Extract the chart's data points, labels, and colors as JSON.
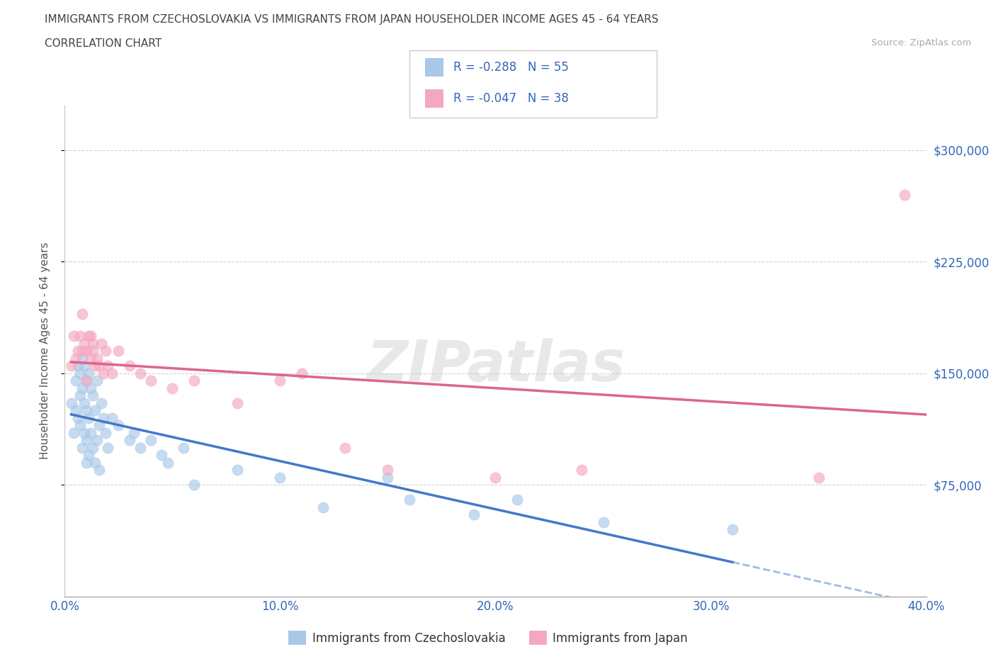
{
  "title_line1": "IMMIGRANTS FROM CZECHOSLOVAKIA VS IMMIGRANTS FROM JAPAN HOUSEHOLDER INCOME AGES 45 - 64 YEARS",
  "title_line2": "CORRELATION CHART",
  "source_text": "Source: ZipAtlas.com",
  "ylabel": "Householder Income Ages 45 - 64 years",
  "xlim": [
    0.0,
    0.4
  ],
  "ylim": [
    0,
    330000
  ],
  "xtick_labels": [
    "0.0%",
    "10.0%",
    "20.0%",
    "30.0%",
    "40.0%"
  ],
  "xtick_vals": [
    0.0,
    0.1,
    0.2,
    0.3,
    0.4
  ],
  "ytick_labels": [
    "$75,000",
    "$150,000",
    "$225,000",
    "$300,000"
  ],
  "ytick_vals": [
    75000,
    150000,
    225000,
    300000
  ],
  "legend_label1": "Immigrants from Czechoslovakia",
  "legend_label2": "Immigrants from Japan",
  "r1": "-0.288",
  "n1": "55",
  "r2": "-0.047",
  "n2": "38",
  "color1": "#a8c8e8",
  "color2": "#f4a8c0",
  "line1_color": "#4477cc",
  "line2_color": "#dd6688",
  "watermark_text": "ZIPatlas",
  "background_color": "#ffffff",
  "grid_color": "#cccccc",
  "czecho_x": [
    0.003,
    0.004,
    0.005,
    0.005,
    0.006,
    0.006,
    0.007,
    0.007,
    0.007,
    0.008,
    0.008,
    0.008,
    0.009,
    0.009,
    0.009,
    0.01,
    0.01,
    0.01,
    0.01,
    0.011,
    0.011,
    0.011,
    0.012,
    0.012,
    0.013,
    0.013,
    0.014,
    0.014,
    0.015,
    0.015,
    0.016,
    0.016,
    0.017,
    0.018,
    0.019,
    0.02,
    0.022,
    0.025,
    0.03,
    0.032,
    0.035,
    0.04,
    0.045,
    0.048,
    0.055,
    0.06,
    0.08,
    0.1,
    0.12,
    0.15,
    0.16,
    0.19,
    0.21,
    0.25,
    0.31
  ],
  "czecho_y": [
    130000,
    110000,
    145000,
    125000,
    155000,
    120000,
    150000,
    135000,
    115000,
    160000,
    140000,
    100000,
    155000,
    130000,
    110000,
    145000,
    125000,
    105000,
    90000,
    150000,
    120000,
    95000,
    140000,
    110000,
    135000,
    100000,
    125000,
    90000,
    145000,
    105000,
    115000,
    85000,
    130000,
    120000,
    110000,
    100000,
    120000,
    115000,
    105000,
    110000,
    100000,
    105000,
    95000,
    90000,
    100000,
    75000,
    85000,
    80000,
    60000,
    80000,
    65000,
    55000,
    65000,
    50000,
    45000
  ],
  "japan_x": [
    0.003,
    0.004,
    0.005,
    0.006,
    0.007,
    0.008,
    0.008,
    0.009,
    0.01,
    0.01,
    0.011,
    0.012,
    0.012,
    0.013,
    0.013,
    0.014,
    0.015,
    0.016,
    0.017,
    0.018,
    0.019,
    0.02,
    0.022,
    0.025,
    0.03,
    0.035,
    0.04,
    0.05,
    0.06,
    0.08,
    0.1,
    0.11,
    0.13,
    0.15,
    0.2,
    0.24,
    0.35,
    0.39
  ],
  "japan_y": [
    155000,
    175000,
    160000,
    165000,
    175000,
    190000,
    165000,
    170000,
    165000,
    145000,
    175000,
    160000,
    175000,
    165000,
    170000,
    155000,
    160000,
    155000,
    170000,
    150000,
    165000,
    155000,
    150000,
    165000,
    155000,
    150000,
    145000,
    140000,
    145000,
    130000,
    145000,
    150000,
    100000,
    85000,
    80000,
    85000,
    80000,
    270000
  ]
}
